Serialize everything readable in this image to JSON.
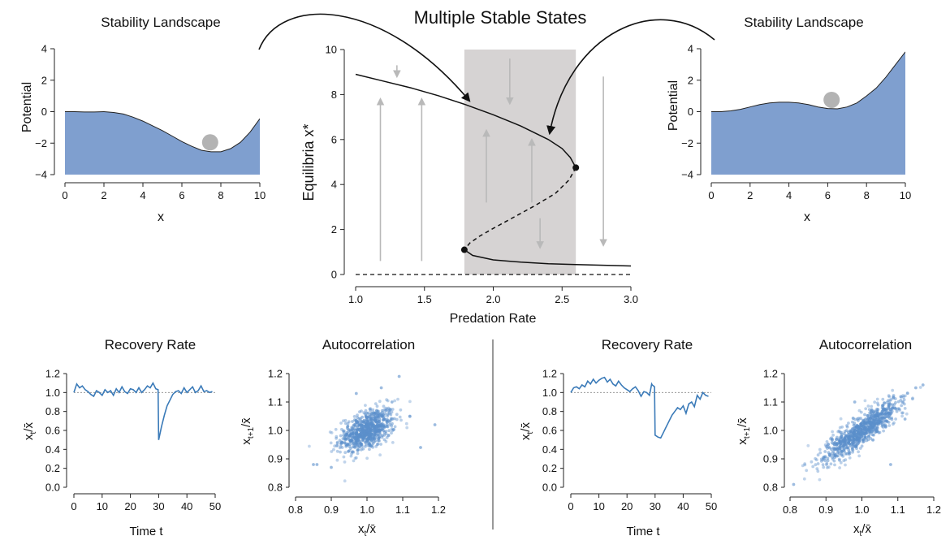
{
  "figure_title": "Multiple Stable States",
  "colors": {
    "landscape_fill": "#7f9fcf",
    "ball": "#b3b3b3",
    "shade": "#d6d3d3",
    "arrow_gray": "#b9b9b9",
    "series_blue": "#3a7ab8",
    "scatter_blue": "#5b8fcb",
    "black": "#111111"
  },
  "chart_data": [
    {
      "id": "landscape_left",
      "type": "area",
      "title": "Stability Landscape",
      "xlabel": "x",
      "ylabel": "Potential",
      "xlim": [
        0,
        10
      ],
      "ylim": [
        -4,
        4
      ],
      "x_ticks": [
        "0",
        "2",
        "4",
        "6",
        "8",
        "10"
      ],
      "y_ticks": [
        "−4",
        "−2",
        "0",
        "2",
        "4"
      ],
      "x": [
        0,
        0.5,
        1,
        1.5,
        2,
        2.5,
        3,
        3.5,
        4,
        4.5,
        5,
        5.5,
        6,
        6.5,
        7,
        7.5,
        8,
        8.5,
        9,
        9.5,
        10
      ],
      "y": [
        0.0,
        0.0,
        -0.02,
        -0.02,
        0.0,
        -0.05,
        -0.15,
        -0.35,
        -0.6,
        -0.9,
        -1.2,
        -1.55,
        -1.9,
        -2.2,
        -2.45,
        -2.55,
        -2.55,
        -2.35,
        -1.95,
        -1.3,
        -0.45
      ],
      "ball": {
        "x": 7.45,
        "y": -1.95
      }
    },
    {
      "id": "landscape_right",
      "type": "area",
      "title": "Stability Landscape",
      "xlabel": "x",
      "ylabel": "Potential",
      "xlim": [
        0,
        10
      ],
      "ylim": [
        -4,
        4
      ],
      "x_ticks": [
        "0",
        "2",
        "4",
        "6",
        "8",
        "10"
      ],
      "y_ticks": [
        "−4",
        "−2",
        "0",
        "2",
        "4"
      ],
      "x": [
        0,
        0.5,
        1,
        1.5,
        2,
        2.5,
        3,
        3.5,
        4,
        4.5,
        5,
        5.5,
        6,
        6.5,
        7,
        7.5,
        8,
        8.5,
        9,
        9.5,
        10
      ],
      "y": [
        0.0,
        0.0,
        0.05,
        0.15,
        0.3,
        0.45,
        0.55,
        0.6,
        0.6,
        0.55,
        0.45,
        0.3,
        0.2,
        0.18,
        0.3,
        0.55,
        1.0,
        1.5,
        2.2,
        3.0,
        3.8
      ],
      "ball": {
        "x": 6.2,
        "y": 0.75
      }
    },
    {
      "id": "bifurcation",
      "type": "line",
      "xlabel": "Predation Rate",
      "ylabel": "Equilibria x*",
      "xlim": [
        1.0,
        3.0
      ],
      "ylim": [
        0,
        10
      ],
      "x_ticks": [
        "1.0",
        "1.5",
        "2.0",
        "2.5",
        "3.0"
      ],
      "y_ticks": [
        "0",
        "2",
        "4",
        "6",
        "8",
        "10"
      ],
      "shaded_x": [
        1.79,
        2.6
      ],
      "upper_branch": {
        "x": [
          1.0,
          1.2,
          1.4,
          1.6,
          1.8,
          2.0,
          2.2,
          2.4,
          2.5,
          2.56,
          2.6
        ],
        "y": [
          8.9,
          8.6,
          8.3,
          7.95,
          7.55,
          7.1,
          6.6,
          6.0,
          5.6,
          5.2,
          4.75
        ]
      },
      "unstable_branch": {
        "x": [
          2.6,
          2.55,
          2.45,
          2.3,
          2.15,
          2.0,
          1.9,
          1.83,
          1.79
        ],
        "y": [
          4.75,
          4.2,
          3.6,
          3.05,
          2.55,
          2.05,
          1.7,
          1.4,
          1.1
        ]
      },
      "lower_branch": {
        "x": [
          1.79,
          1.85,
          2.0,
          2.2,
          2.4,
          2.6,
          2.8,
          3.0
        ],
        "y": [
          1.1,
          0.85,
          0.65,
          0.55,
          0.48,
          0.44,
          0.41,
          0.38
        ]
      },
      "zero_branch": {
        "x": [
          1.0,
          3.0
        ],
        "y": [
          0.0,
          0.0
        ]
      },
      "bifurcation_points": [
        {
          "x": 1.79,
          "y": 1.1
        },
        {
          "x": 2.6,
          "y": 4.75
        }
      ],
      "flow_arrows": [
        {
          "x": 1.18,
          "from": 0.6,
          "to": 7.8
        },
        {
          "x": 1.3,
          "from": 9.3,
          "to": 8.8
        },
        {
          "x": 1.48,
          "from": 0.6,
          "to": 7.8
        },
        {
          "x": 1.95,
          "from": 3.2,
          "to": 6.4
        },
        {
          "x": 2.12,
          "from": 9.6,
          "to": 7.6
        },
        {
          "x": 2.28,
          "from": 3.2,
          "to": 6.0
        },
        {
          "x": 2.34,
          "from": 2.5,
          "to": 1.2
        },
        {
          "x": 2.8,
          "from": 8.8,
          "to": 1.3
        }
      ]
    },
    {
      "id": "recovery_left",
      "type": "line",
      "title": "Recovery Rate",
      "xlabel": "Time t",
      "ylabel": "xt/x̄",
      "xlim": [
        0,
        50
      ],
      "ylim": [
        0,
        1.2
      ],
      "x_ticks": [
        "0",
        "10",
        "20",
        "30",
        "40",
        "50"
      ],
      "y_ticks": [
        "0.0",
        "0.2",
        "0.4",
        "0.6",
        "0.8",
        "1.0",
        "1.2"
      ],
      "reference": 1.0,
      "x": [
        0,
        1,
        2,
        3,
        4,
        5,
        6,
        7,
        8,
        9,
        10,
        11,
        12,
        13,
        14,
        15,
        16,
        17,
        18,
        19,
        20,
        21,
        22,
        23,
        24,
        25,
        26,
        27,
        28,
        29,
        29.8,
        30,
        31,
        32,
        33,
        34,
        35,
        36,
        37,
        38,
        39,
        40,
        41,
        42,
        43,
        44,
        45,
        46,
        47,
        48,
        49
      ],
      "y": [
        1.0,
        1.09,
        1.05,
        1.07,
        1.03,
        1.01,
        0.98,
        0.96,
        1.02,
        1.0,
        0.97,
        1.03,
        1.0,
        1.02,
        0.97,
        1.04,
        1.0,
        1.06,
        1.01,
        0.99,
        1.04,
        1.03,
        1.0,
        1.05,
        1.0,
        1.03,
        1.07,
        1.05,
        1.1,
        1.04,
        1.03,
        0.5,
        0.64,
        0.76,
        0.86,
        0.92,
        0.98,
        1.01,
        1.02,
        0.99,
        1.05,
        1.0,
        1.03,
        1.06,
        1.0,
        1.02,
        1.07,
        1.01,
        1.02,
        1.0,
        1.01
      ]
    },
    {
      "id": "autocorr_left",
      "type": "scatter",
      "title": "Autocorrelation",
      "xlabel": "xt/x̄",
      "ylabel": "xt+1/x̄",
      "xlim": [
        0.8,
        1.2
      ],
      "ylim": [
        0.8,
        1.2
      ],
      "x_ticks": [
        "0.8",
        "0.9",
        "1.0",
        "1.1",
        "1.2"
      ],
      "y_ticks": [
        "0.8",
        "0.9",
        "1.0",
        "1.1",
        "1.2"
      ],
      "cloud": {
        "n": 600,
        "center": [
          1.0,
          1.0
        ],
        "sd_x": 0.04,
        "sd_y": 0.04,
        "corr": 0.45
      },
      "outliers": [
        [
          1.09,
          1.19
        ],
        [
          1.15,
          0.94
        ],
        [
          1.19,
          1.02
        ],
        [
          0.86,
          0.88
        ],
        [
          0.85,
          0.88
        ],
        [
          0.9,
          0.87
        ],
        [
          1.07,
          1.1
        ],
        [
          0.97,
          1.13
        ],
        [
          1.04,
          1.15
        ],
        [
          1.12,
          1.05
        ]
      ]
    },
    {
      "id": "recovery_right",
      "type": "line",
      "title": "Recovery Rate",
      "xlabel": "Time t",
      "ylabel": "xt/x̄",
      "xlim": [
        0,
        50
      ],
      "ylim": [
        0,
        1.2
      ],
      "x_ticks": [
        "0",
        "10",
        "20",
        "30",
        "40",
        "50"
      ],
      "y_ticks": [
        "0.0",
        "0.2",
        "0.4",
        "0.6",
        "0.8",
        "1.0",
        "1.2"
      ],
      "reference": 1.0,
      "x": [
        0,
        1,
        2,
        3,
        4,
        5,
        6,
        7,
        8,
        9,
        10,
        11,
        12,
        13,
        14,
        15,
        16,
        17,
        18,
        19,
        20,
        21,
        22,
        23,
        24,
        25,
        26,
        27,
        28,
        28.8,
        29,
        29.8,
        30,
        31,
        32,
        33,
        34,
        35,
        36,
        37,
        38,
        39,
        40,
        41,
        42,
        43,
        44,
        45,
        46,
        47,
        48,
        49
      ],
      "y": [
        1.0,
        1.05,
        1.06,
        1.04,
        1.08,
        1.06,
        1.12,
        1.09,
        1.14,
        1.1,
        1.13,
        1.15,
        1.16,
        1.11,
        1.14,
        1.09,
        1.07,
        1.12,
        1.08,
        1.05,
        1.03,
        1.01,
        1.04,
        1.06,
        1.02,
        0.96,
        1.01,
        1.0,
        0.97,
        1.09,
        1.08,
        1.06,
        0.55,
        0.53,
        0.52,
        0.58,
        0.64,
        0.7,
        0.76,
        0.8,
        0.84,
        0.82,
        0.86,
        0.78,
        0.88,
        0.9,
        0.85,
        0.97,
        0.93,
        1.0,
        0.97,
        0.96
      ]
    },
    {
      "id": "autocorr_right",
      "type": "scatter",
      "title": "Autocorrelation",
      "xlabel": "xt/x̄",
      "ylabel": "xt+1/x̄",
      "xlim": [
        0.8,
        1.2
      ],
      "ylim": [
        0.8,
        1.2
      ],
      "x_ticks": [
        "0.8",
        "0.9",
        "1.0",
        "1.1",
        "1.2"
      ],
      "y_ticks": [
        "0.8",
        "0.9",
        "1.0",
        "1.1",
        "1.2"
      ],
      "cloud": {
        "n": 650,
        "center": [
          1.0,
          1.0
        ],
        "sd_x": 0.06,
        "sd_y": 0.06,
        "corr": 0.88
      },
      "outliers": [
        [
          0.79,
          0.91
        ],
        [
          0.81,
          0.81
        ],
        [
          0.82,
          0.78
        ],
        [
          1.17,
          1.16
        ],
        [
          1.15,
          1.15
        ],
        [
          0.98,
          1.1
        ],
        [
          1.08,
          0.88
        ],
        [
          1.12,
          1.04
        ]
      ]
    }
  ]
}
